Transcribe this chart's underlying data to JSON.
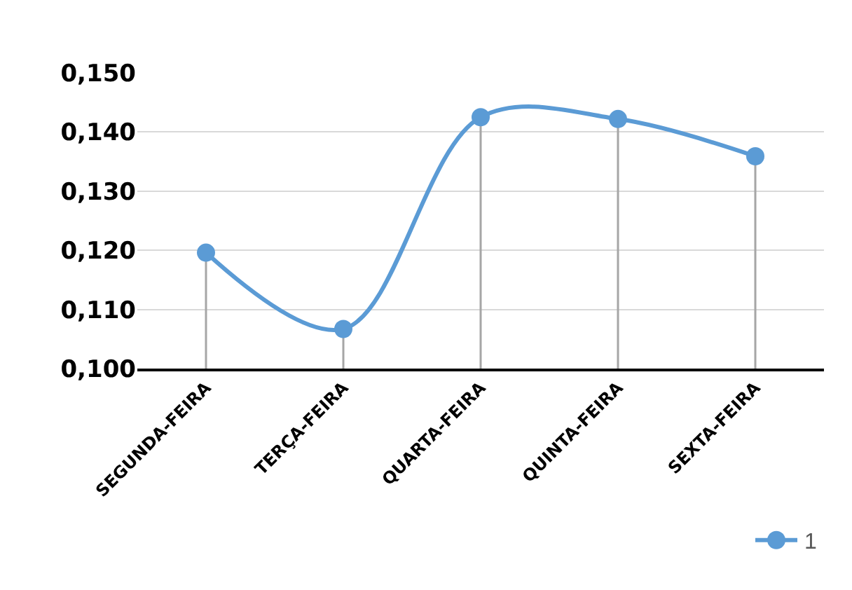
{
  "chart_data": {
    "type": "line",
    "categories": [
      "SEGUNDA-FEIRA",
      "TERÇA-FEIRA",
      "QUARTA-FEIRA",
      "QUINTA-FEIRA",
      "SEXTA-FEIRA"
    ],
    "series": [
      {
        "name": "1",
        "color": "#5b9bd5",
        "values": [
          0.1196,
          0.1067,
          0.1425,
          0.1422,
          0.1359
        ],
        "errors": [
          [
            0.1,
            0.1196
          ],
          [
            0.1,
            0.1067
          ],
          [
            0.1,
            0.1425
          ],
          [
            0.1,
            0.1422
          ],
          [
            0.1,
            0.1359
          ]
        ]
      }
    ],
    "ylim": [
      0.1,
      0.15
    ],
    "yticks": [
      {
        "value": 0.1,
        "label": "0,100"
      },
      {
        "value": 0.11,
        "label": "0,110"
      },
      {
        "value": 0.12,
        "label": "0,120"
      },
      {
        "value": 0.13,
        "label": "0,130"
      },
      {
        "value": 0.14,
        "label": "0,140"
      },
      {
        "value": 0.15,
        "label": "0,150"
      }
    ],
    "grid": "y",
    "legend": "bottom right",
    "marker": "circle",
    "line_style": "solid"
  }
}
